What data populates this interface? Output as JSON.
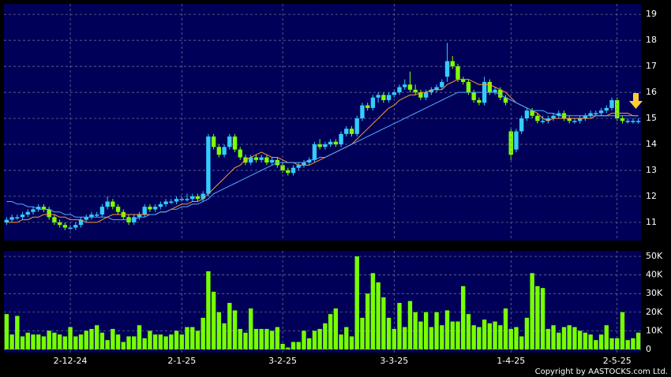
{
  "chart_data": [
    {
      "type": "candlestick",
      "ylim": [
        10.3,
        19.4
      ],
      "yticks": [
        11,
        12,
        13,
        14,
        15,
        16,
        17,
        18,
        19
      ],
      "grid": true,
      "up_color": "#33ccff",
      "down_color": "#80ff00",
      "open": [
        11.0,
        11.1,
        11.2,
        11.2,
        11.3,
        11.4,
        11.5,
        11.6,
        11.5,
        11.2,
        11.0,
        10.9,
        10.8,
        10.8,
        10.9,
        11.1,
        11.2,
        11.3,
        11.3,
        11.6,
        11.8,
        11.6,
        11.4,
        11.2,
        11.0,
        11.2,
        11.3,
        11.6,
        11.5,
        11.6,
        11.7,
        11.8,
        11.8,
        11.9,
        11.9,
        11.9,
        12.0,
        11.9,
        12.1,
        14.3,
        13.9,
        13.6,
        13.9,
        14.3,
        13.8,
        13.5,
        13.3,
        13.5,
        13.4,
        13.5,
        13.3,
        13.4,
        13.2,
        13.0,
        12.9,
        13.1,
        13.2,
        13.3,
        13.4,
        14.0,
        13.9,
        14.0,
        14.1,
        14.0,
        14.4,
        14.6,
        14.4,
        15.0,
        15.5,
        15.4,
        15.8,
        15.9,
        15.7,
        15.9,
        16.0,
        16.2,
        16.3,
        16.1,
        16.0,
        15.8,
        16.0,
        16.1,
        16.2,
        16.6,
        17.2,
        17.0,
        16.5,
        16.4,
        16.0,
        15.7,
        15.6,
        16.4,
        16.0,
        16.1,
        15.8,
        14.5,
        13.8,
        14.5,
        15.0,
        15.3,
        15.1,
        14.9,
        14.9,
        15.0,
        15.1,
        15.2,
        15.0,
        14.9,
        14.9,
        15.0,
        15.1,
        15.2,
        15.2,
        15.3,
        15.4,
        15.7,
        15.0,
        14.9,
        14.9,
        14.9
      ],
      "high": [
        11.2,
        11.3,
        11.3,
        11.4,
        11.5,
        11.6,
        11.7,
        11.7,
        11.6,
        11.3,
        11.1,
        11.0,
        10.9,
        11.0,
        11.2,
        11.3,
        11.4,
        11.4,
        11.7,
        12.0,
        11.9,
        11.7,
        11.5,
        11.3,
        11.3,
        11.4,
        11.7,
        11.7,
        11.7,
        11.8,
        11.9,
        11.9,
        12.0,
        12.0,
        12.1,
        12.1,
        12.1,
        12.2,
        14.4,
        14.4,
        14.0,
        14.0,
        14.4,
        14.4,
        13.9,
        13.6,
        13.6,
        13.6,
        13.6,
        13.6,
        13.5,
        13.5,
        13.3,
        13.1,
        13.2,
        13.3,
        13.4,
        13.5,
        14.1,
        14.2,
        14.1,
        14.2,
        14.2,
        14.5,
        14.7,
        14.7,
        15.1,
        15.6,
        15.6,
        15.9,
        16.0,
        16.0,
        16.0,
        16.1,
        16.3,
        16.5,
        16.8,
        16.3,
        16.1,
        16.1,
        16.2,
        16.3,
        16.5,
        17.9,
        17.4,
        17.1,
        16.6,
        16.5,
        16.1,
        15.8,
        16.6,
        16.5,
        16.2,
        16.2,
        15.9,
        14.6,
        14.6,
        15.1,
        15.4,
        15.4,
        15.2,
        15.1,
        15.1,
        15.2,
        15.3,
        15.3,
        15.1,
        15.0,
        15.1,
        15.2,
        15.3,
        15.3,
        15.4,
        15.5,
        15.8,
        15.8,
        15.1,
        15.0,
        15.0,
        15.0
      ],
      "low": [
        10.9,
        11.0,
        11.1,
        11.1,
        11.2,
        11.3,
        11.4,
        11.4,
        11.1,
        10.9,
        10.8,
        10.7,
        10.7,
        10.7,
        10.8,
        11.0,
        11.1,
        11.2,
        11.2,
        11.5,
        11.5,
        11.3,
        11.1,
        10.9,
        10.9,
        11.1,
        11.2,
        11.4,
        11.4,
        11.5,
        11.6,
        11.7,
        11.7,
        11.8,
        11.8,
        11.8,
        11.8,
        11.8,
        12.0,
        13.8,
        13.5,
        13.5,
        13.8,
        13.7,
        13.4,
        13.2,
        13.2,
        13.3,
        13.3,
        13.2,
        13.2,
        13.1,
        12.9,
        12.8,
        12.8,
        13.0,
        13.1,
        13.2,
        13.3,
        13.8,
        13.8,
        13.9,
        13.9,
        13.9,
        14.3,
        14.3,
        14.3,
        14.9,
        15.3,
        15.3,
        15.6,
        15.6,
        15.6,
        15.8,
        15.9,
        16.1,
        16.0,
        15.9,
        15.7,
        15.7,
        15.9,
        16.0,
        16.1,
        16.4,
        16.9,
        16.4,
        16.3,
        15.9,
        15.6,
        15.5,
        15.5,
        15.9,
        15.9,
        15.7,
        15.5,
        13.4,
        13.7,
        14.4,
        14.9,
        15.0,
        14.8,
        14.8,
        14.8,
        14.9,
        15.0,
        14.9,
        14.8,
        14.8,
        14.8,
        14.9,
        15.0,
        15.1,
        15.1,
        15.2,
        15.3,
        14.9,
        14.8,
        14.8,
        14.8,
        14.8
      ],
      "close": [
        11.1,
        11.2,
        11.2,
        11.3,
        11.4,
        11.5,
        11.6,
        11.5,
        11.2,
        11.0,
        10.9,
        10.8,
        10.8,
        10.9,
        11.1,
        11.2,
        11.3,
        11.3,
        11.6,
        11.8,
        11.6,
        11.4,
        11.2,
        11.0,
        11.2,
        11.3,
        11.6,
        11.5,
        11.6,
        11.7,
        11.8,
        11.8,
        11.9,
        11.9,
        11.9,
        12.0,
        11.9,
        12.1,
        14.3,
        13.9,
        13.6,
        13.9,
        14.3,
        13.8,
        13.5,
        13.3,
        13.5,
        13.4,
        13.5,
        13.3,
        13.4,
        13.2,
        13.0,
        12.9,
        13.1,
        13.2,
        13.3,
        13.4,
        14.0,
        13.9,
        14.0,
        14.1,
        14.0,
        14.4,
        14.6,
        14.4,
        15.0,
        15.5,
        15.4,
        15.8,
        15.9,
        15.7,
        15.9,
        16.0,
        16.2,
        16.3,
        16.1,
        16.0,
        15.8,
        16.0,
        16.1,
        16.2,
        16.4,
        17.2,
        17.0,
        16.5,
        16.4,
        16.0,
        15.7,
        15.6,
        16.4,
        16.0,
        16.1,
        15.8,
        15.6,
        13.6,
        14.5,
        15.0,
        15.3,
        15.1,
        14.9,
        14.9,
        15.0,
        15.1,
        15.2,
        15.0,
        14.9,
        14.9,
        15.0,
        15.1,
        15.2,
        15.2,
        15.3,
        15.4,
        15.7,
        15.0,
        14.9,
        14.9,
        14.9,
        14.9
      ],
      "series": [
        {
          "color": "#ff9933",
          "values": [
            11.0,
            11.0,
            11.0,
            11.1,
            11.1,
            11.2,
            11.2,
            11.3,
            11.3,
            11.3,
            11.2,
            11.2,
            11.1,
            11.1,
            11.1,
            11.0,
            11.0,
            11.0,
            11.1,
            11.2,
            11.3,
            11.3,
            11.3,
            11.3,
            11.3,
            11.3,
            11.3,
            11.3,
            11.3,
            11.4,
            11.4,
            11.5,
            11.6,
            11.7,
            11.7,
            11.8,
            11.8,
            11.9,
            12.1,
            12.3,
            12.5,
            12.7,
            12.9,
            13.1,
            13.2,
            13.4,
            13.5,
            13.6,
            13.7,
            13.6,
            13.5,
            13.5,
            13.4,
            13.3,
            13.3,
            13.2,
            13.2,
            13.2,
            13.3,
            13.4,
            13.5,
            13.6,
            13.7,
            13.8,
            13.9,
            14.0,
            14.2,
            14.4,
            14.6,
            14.8,
            15.0,
            15.2,
            15.4,
            15.5,
            15.7,
            15.8,
            15.9,
            15.9,
            16.0,
            16.0,
            16.1,
            16.1,
            16.1,
            16.3,
            16.4,
            16.5,
            16.5,
            16.5,
            16.4,
            16.3,
            16.3,
            16.3,
            16.2,
            16.1,
            16.0,
            15.8,
            15.6,
            15.5,
            15.4,
            15.3,
            15.2,
            15.0,
            14.9,
            15.0,
            15.0,
            15.0,
            15.0,
            15.0,
            15.0,
            15.0,
            15.0,
            15.1,
            15.1,
            15.1,
            15.2,
            15.2,
            15.2,
            15.2,
            15.1,
            15.1
          ]
        },
        {
          "color": "#55aaff",
          "values": [
            11.8,
            11.8,
            11.7,
            11.7,
            11.6,
            11.6,
            11.5,
            11.5,
            11.5,
            11.4,
            11.4,
            11.3,
            11.3,
            11.2,
            11.2,
            11.2,
            11.2,
            11.2,
            11.2,
            11.2,
            11.1,
            11.1,
            11.1,
            11.1,
            11.1,
            11.2,
            11.2,
            11.3,
            11.3,
            11.4,
            11.4,
            11.5,
            11.5,
            11.6,
            11.6,
            11.7,
            11.7,
            11.8,
            11.9,
            12.1,
            12.2,
            12.3,
            12.4,
            12.5,
            12.6,
            12.7,
            12.8,
            12.9,
            13.0,
            13.1,
            13.2,
            13.3,
            13.3,
            13.3,
            13.3,
            13.3,
            13.3,
            13.4,
            13.4,
            13.5,
            13.5,
            13.6,
            13.7,
            13.8,
            13.9,
            14.0,
            14.1,
            14.2,
            14.3,
            14.4,
            14.5,
            14.6,
            14.7,
            14.8,
            14.9,
            15.0,
            15.1,
            15.2,
            15.3,
            15.4,
            15.5,
            15.6,
            15.7,
            15.8,
            15.9,
            16.0,
            16.0,
            16.0,
            16.0,
            16.0,
            16.0,
            16.0,
            16.0,
            15.9,
            15.8,
            15.7,
            15.6,
            15.5,
            15.4,
            15.3,
            15.3,
            15.3,
            15.2,
            15.2,
            15.1,
            15.1,
            15.1,
            15.1,
            15.1,
            15.1,
            15.1,
            15.1,
            15.1,
            15.1,
            15.1,
            15.1,
            15.1,
            15.1,
            15.1,
            15.1
          ]
        }
      ]
    },
    {
      "type": "bar",
      "color": "#77ff00",
      "ylim": [
        0,
        53000
      ],
      "yticks": [
        0,
        {
          "value": 10000,
          "label": "10K"
        },
        {
          "value": 20000,
          "label": "20K"
        },
        {
          "value": 30000,
          "label": "30K"
        },
        {
          "value": 40000,
          "label": "40K"
        },
        {
          "value": 50000,
          "label": "50K"
        }
      ],
      "categories": [
        null,
        null,
        null,
        null,
        null,
        null,
        null,
        null,
        null,
        null,
        null,
        null,
        "2-12-24",
        null,
        null,
        null,
        null,
        null,
        null,
        null,
        null,
        null,
        null,
        null,
        null,
        null,
        null,
        null,
        null,
        null,
        null,
        null,
        null,
        "2-1-25",
        null,
        null,
        null,
        null,
        null,
        null,
        null,
        null,
        null,
        null,
        null,
        null,
        null,
        null,
        null,
        null,
        null,
        null,
        "3-2-25",
        null,
        null,
        null,
        null,
        null,
        null,
        null,
        null,
        null,
        null,
        null,
        null,
        null,
        null,
        null,
        null,
        null,
        null,
        null,
        null,
        "3-3-25",
        null,
        null,
        null,
        null,
        null,
        null,
        null,
        null,
        null,
        null,
        null,
        null,
        null,
        null,
        null,
        null,
        null,
        null,
        null,
        null,
        null,
        "1-4-25",
        null,
        null,
        null,
        null,
        null,
        null,
        null,
        null,
        null,
        null,
        null,
        null,
        null,
        null,
        null,
        null,
        null,
        null,
        null,
        "2-5-25",
        null,
        null,
        null,
        null
      ],
      "values": [
        19000,
        8000,
        18000,
        7000,
        9000,
        8000,
        8000,
        7000,
        10000,
        9000,
        8000,
        7000,
        12000,
        7000,
        8000,
        10000,
        11000,
        13000,
        9000,
        5000,
        11000,
        8000,
        4000,
        7000,
        7000,
        13000,
        6000,
        10000,
        8000,
        8000,
        7000,
        8000,
        10000,
        8000,
        12000,
        12000,
        10000,
        17000,
        42000,
        31000,
        20000,
        14000,
        25000,
        21000,
        11000,
        9000,
        22000,
        11000,
        11000,
        11000,
        10000,
        12000,
        3000,
        1000,
        4000,
        4000,
        10000,
        6000,
        10000,
        11000,
        14000,
        19000,
        22000,
        8000,
        12000,
        7000,
        50000,
        17000,
        30000,
        41000,
        36000,
        28000,
        17000,
        11000,
        25000,
        12000,
        26000,
        20000,
        15000,
        20000,
        12000,
        20000,
        13000,
        21000,
        15000,
        15000,
        34000,
        19000,
        13000,
        12000,
        16000,
        14000,
        15000,
        13000,
        22000,
        11000,
        12000,
        7000,
        17000,
        41000,
        34000,
        33000,
        11000,
        13000,
        9000,
        12000,
        13000,
        12000,
        10000,
        9000,
        8000,
        5000,
        8000,
        13000,
        6000,
        6000,
        20000,
        5000,
        6000,
        9000
      ]
    },
    {
      "copyright": "Copyright by AASTOCKS.com Ltd."
    }
  ]
}
